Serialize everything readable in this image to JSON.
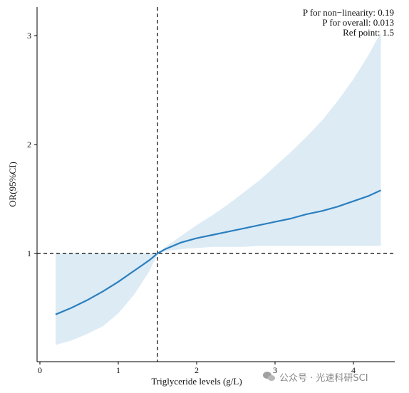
{
  "chart_data": {
    "type": "line",
    "xlabel": "Triglyceride levels (g/L)",
    "ylabel": "OR(95%CI)",
    "xlim": [
      0,
      4.6
    ],
    "ylim": [
      0,
      3.25
    ],
    "x_ticks": [
      "0",
      "1",
      "2",
      "3",
      "4"
    ],
    "y_ticks": [
      "1",
      "2",
      "3"
    ],
    "x_tick_values": [
      0,
      1,
      2,
      3,
      4
    ],
    "y_tick_values": [
      1,
      2,
      3
    ],
    "reference_lines": {
      "x": 1.5,
      "y": 1
    },
    "annotations": [
      "P for non−linearity: 0.19",
      "P for overall: 0.013",
      "Ref point: 1.5"
    ],
    "series": [
      {
        "x": [
          0.2,
          0.4,
          0.6,
          0.8,
          1.0,
          1.2,
          1.4,
          1.5,
          1.6,
          1.8,
          2.0,
          2.2,
          2.4,
          2.6,
          2.8,
          3.0,
          3.2,
          3.4,
          3.6,
          3.8,
          4.0,
          4.2,
          4.35
        ],
        "y": [
          0.44,
          0.5,
          0.57,
          0.65,
          0.74,
          0.84,
          0.94,
          1.0,
          1.04,
          1.1,
          1.14,
          1.17,
          1.2,
          1.23,
          1.26,
          1.29,
          1.32,
          1.36,
          1.39,
          1.43,
          1.48,
          1.53,
          1.58
        ],
        "lower": [
          0.16,
          0.2,
          0.26,
          0.33,
          0.45,
          0.62,
          0.84,
          1.0,
          1.02,
          1.04,
          1.05,
          1.06,
          1.06,
          1.06,
          1.07,
          1.07,
          1.07,
          1.07,
          1.07,
          1.07,
          1.07,
          1.07,
          1.07
        ],
        "upper": [
          1.0,
          1.0,
          1.0,
          1.0,
          1.0,
          1.0,
          1.0,
          1.0,
          1.06,
          1.16,
          1.26,
          1.35,
          1.45,
          1.56,
          1.67,
          1.8,
          1.93,
          2.07,
          2.22,
          2.4,
          2.6,
          2.83,
          3.03
        ]
      }
    ],
    "colors": {
      "line": "#2a7fbf",
      "band": "#ddebf5",
      "ref_line": "#000000"
    },
    "grid": false
  },
  "watermark": {
    "icon": "wechat-icon",
    "text": "公众号 · 光速科研SCI"
  }
}
